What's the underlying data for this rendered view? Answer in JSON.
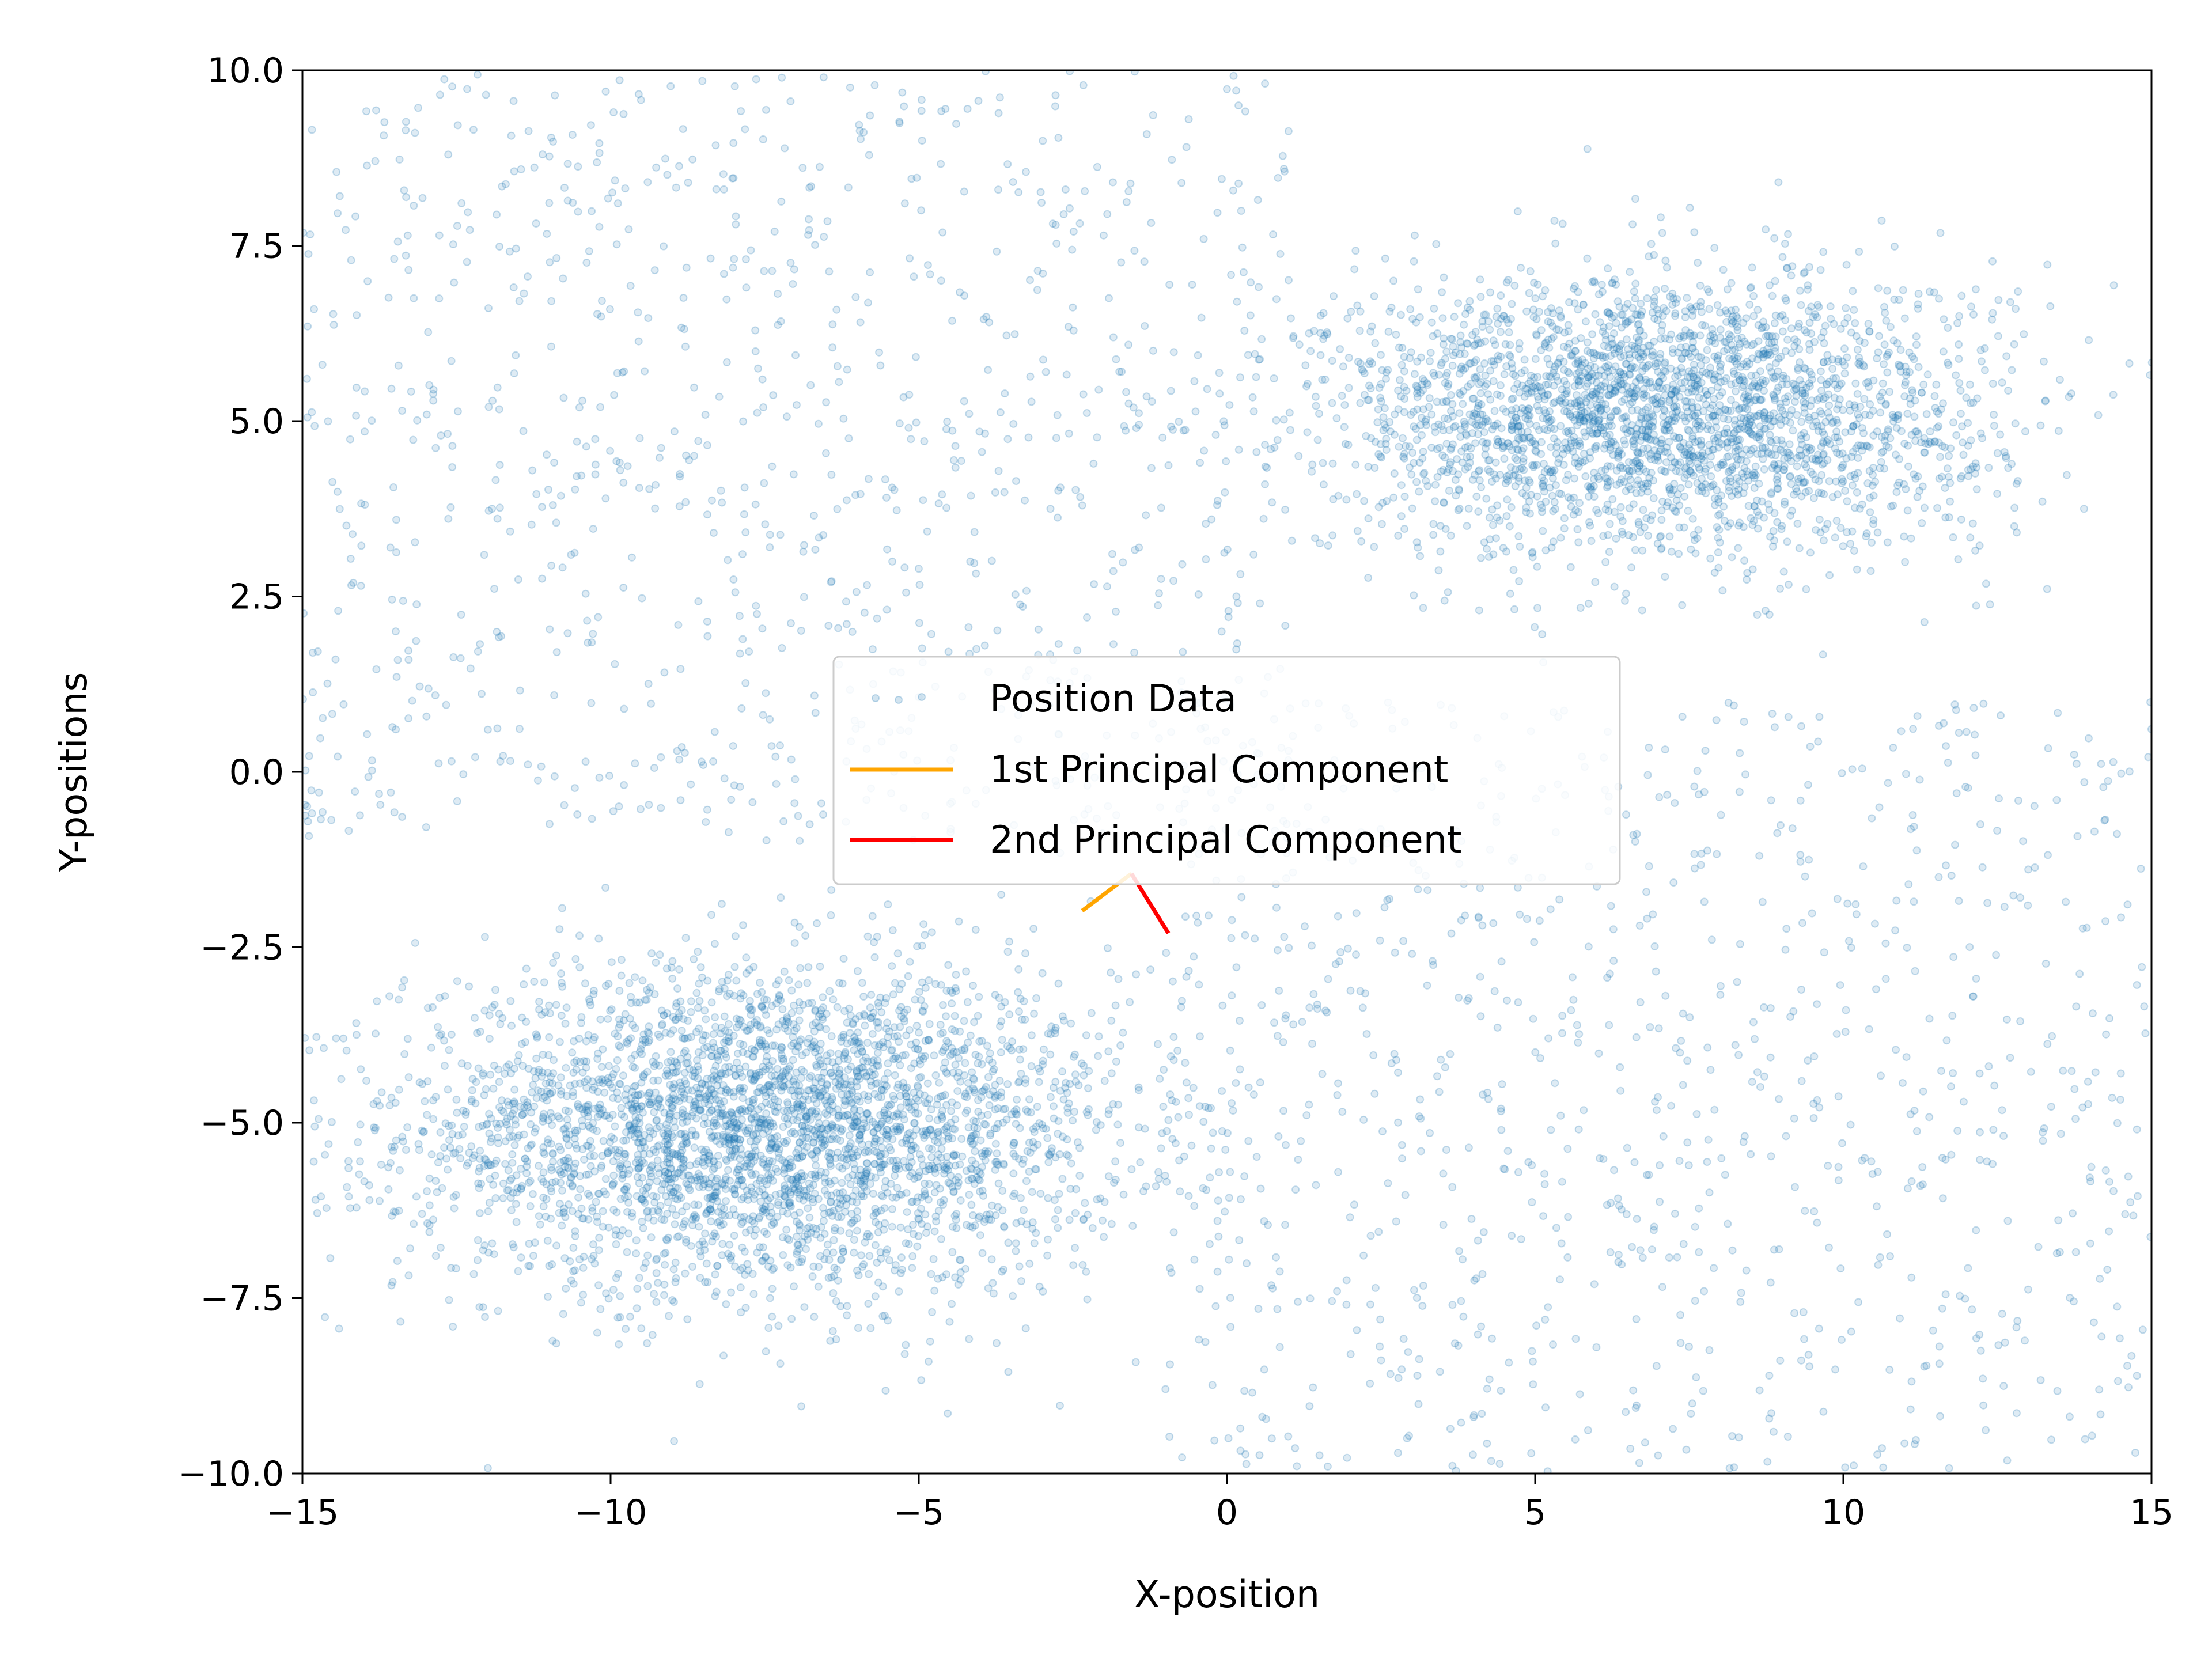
{
  "chart_data": {
    "type": "scatter",
    "title": "",
    "xlabel": "X-position",
    "ylabel": "Y-positions",
    "xlim": [
      -15,
      15
    ],
    "ylim": [
      -10,
      10
    ],
    "grid": false,
    "legend_placement": "center",
    "x_ticks": [
      -15,
      -10,
      -5,
      0,
      5,
      10,
      15
    ],
    "y_ticks": [
      -10.0,
      -7.5,
      -5.0,
      -2.5,
      0.0,
      2.5,
      5.0,
      7.5,
      10.0
    ],
    "x_tick_labels": [
      "−15",
      "−10",
      "−5",
      "0",
      "5",
      "10",
      "15"
    ],
    "y_tick_labels": [
      "−10.0",
      "−7.5",
      "−5.0",
      "−2.5",
      "0.0",
      "2.5",
      "5.0",
      "7.5",
      "10.0"
    ],
    "series": [
      {
        "name": "Position Data",
        "kind": "scatter",
        "color": "#1f77b4",
        "clusters": [
          {
            "center": [
              -7.5,
              -5.1
            ],
            "spread": [
              2.9,
              1.15
            ],
            "count": 3500
          },
          {
            "center": [
              7.0,
              5.1
            ],
            "spread": [
              2.7,
              1.0
            ],
            "count": 2800
          }
        ],
        "background_count": 1900,
        "background_regions": [
          {
            "x": [
              -15,
              1
            ],
            "y": [
              -1,
              10
            ]
          },
          {
            "x": [
              -1,
              15
            ],
            "y": [
              -10,
              1
            ]
          }
        ]
      },
      {
        "name": "1st Principal Component",
        "kind": "line",
        "color": "#ffa500",
        "x": [
          -2.35,
          -1.55
        ],
        "y": [
          -1.98,
          -1.45
        ]
      },
      {
        "name": "2nd Principal Component",
        "kind": "line",
        "color": "#ff0000",
        "x": [
          -1.55,
          -0.95
        ],
        "y": [
          -1.45,
          -2.3
        ]
      }
    ]
  }
}
